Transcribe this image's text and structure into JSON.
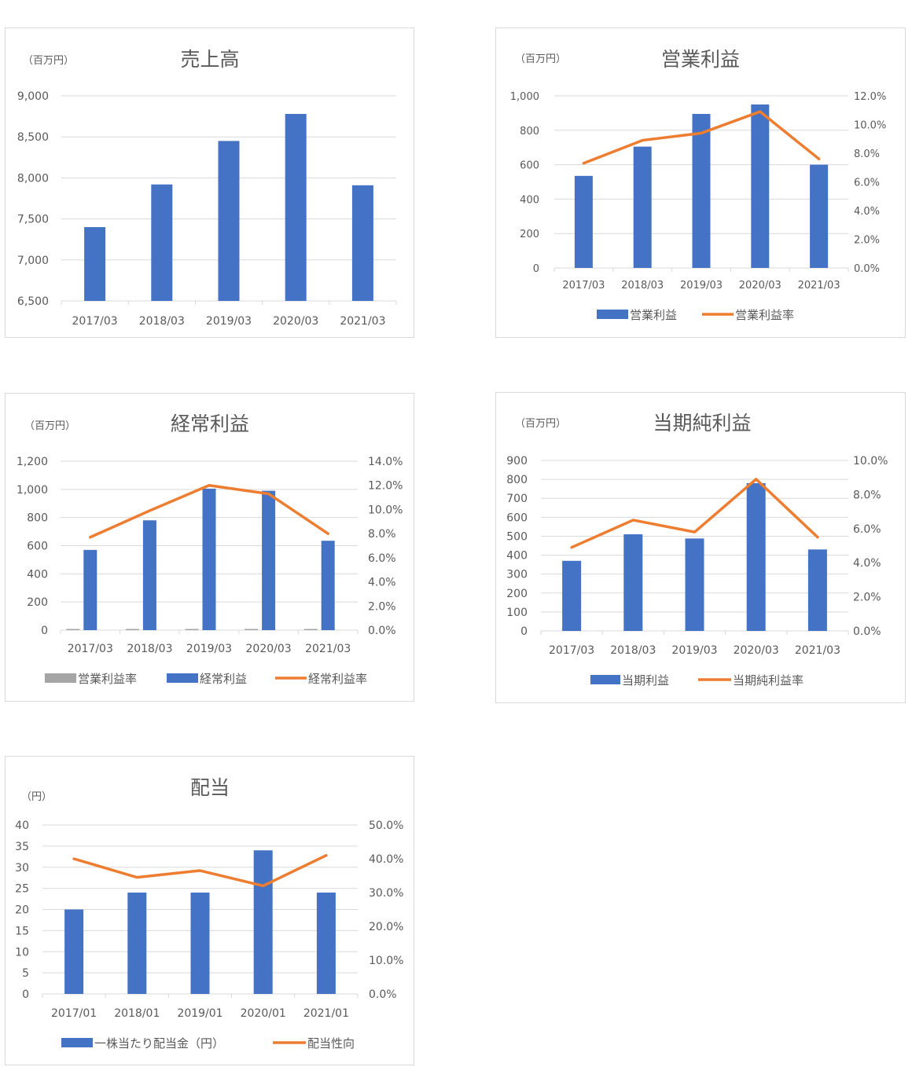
{
  "colors": {
    "bar": "#4472c4",
    "line": "#ed7d31",
    "gray": "#a5a5a5",
    "grid": "#d9d9d9",
    "text": "#595959"
  },
  "chart_data": [
    {
      "type": "bar",
      "title": "売上高",
      "unit": "（百万円）",
      "categories": [
        "2017/03",
        "2018/03",
        "2019/03",
        "2020/03",
        "2021/03"
      ],
      "series": [
        {
          "values": [
            7400,
            7920,
            8450,
            8780,
            7910
          ]
        }
      ],
      "ylim": [
        6500,
        9000
      ],
      "yticks": [
        "6,500",
        "7,000",
        "7,500",
        "8,000",
        "8,500",
        "9,000"
      ],
      "grid": true,
      "legend": "none"
    },
    {
      "type": "bar",
      "title": "営業利益",
      "unit": "（百万円）",
      "categories": [
        "2017/03",
        "2018/03",
        "2019/03",
        "2020/03",
        "2021/03"
      ],
      "series": [
        {
          "name": "営業利益",
          "type": "bar",
          "axis": "left",
          "values": [
            535,
            705,
            895,
            950,
            600
          ]
        },
        {
          "name": "営業利益率",
          "type": "line",
          "axis": "right",
          "values": [
            0.073,
            0.089,
            0.094,
            0.109,
            0.076
          ]
        }
      ],
      "ylim": [
        0,
        1000
      ],
      "yticks": [
        "0",
        "200",
        "400",
        "600",
        "800",
        "1,000"
      ],
      "y2lim": [
        0,
        0.12
      ],
      "y2ticks": [
        "0.0%",
        "2.0%",
        "4.0%",
        "6.0%",
        "8.0%",
        "10.0%",
        "12.0%"
      ],
      "grid": true,
      "legend": "bottom"
    },
    {
      "type": "bar",
      "title": "経常利益",
      "unit": "（百万円）",
      "categories": [
        "2017/03",
        "2018/03",
        "2019/03",
        "2020/03",
        "2021/03"
      ],
      "series": [
        {
          "name": "営業利益率",
          "type": "bar",
          "axis": "left",
          "values": [
            0.073,
            0.089,
            0.094,
            0.109,
            0.076
          ]
        },
        {
          "name": "経常利益",
          "type": "bar",
          "axis": "left",
          "values": [
            570,
            780,
            1005,
            990,
            635
          ]
        },
        {
          "name": "経常利益率",
          "type": "line",
          "axis": "right",
          "values": [
            0.077,
            0.099,
            0.12,
            0.113,
            0.08
          ]
        }
      ],
      "ylim": [
        0,
        1200
      ],
      "yticks": [
        "0",
        "200",
        "400",
        "600",
        "800",
        "1,000",
        "1,200"
      ],
      "y2lim": [
        0,
        0.14
      ],
      "y2ticks": [
        "0.0%",
        "2.0%",
        "4.0%",
        "6.0%",
        "8.0%",
        "10.0%",
        "12.0%",
        "14.0%"
      ],
      "grid": true,
      "legend": "bottom"
    },
    {
      "type": "bar",
      "title": "当期純利益",
      "unit": "（百万円）",
      "categories": [
        "2017/03",
        "2018/03",
        "2019/03",
        "2020/03",
        "2021/03"
      ],
      "series": [
        {
          "name": "当期利益",
          "type": "bar",
          "axis": "left",
          "values": [
            370,
            510,
            488,
            780,
            430
          ]
        },
        {
          "name": "当期純利益率",
          "type": "line",
          "axis": "right",
          "values": [
            0.049,
            0.065,
            0.058,
            0.089,
            0.055
          ]
        }
      ],
      "ylim": [
        0,
        900
      ],
      "yticks": [
        "0",
        "100",
        "200",
        "300",
        "400",
        "500",
        "600",
        "700",
        "800",
        "900"
      ],
      "y2lim": [
        0,
        0.1
      ],
      "y2ticks": [
        "0.0%",
        "2.0%",
        "4.0%",
        "6.0%",
        "8.0%",
        "10.0%"
      ],
      "grid": true,
      "legend": "bottom"
    },
    {
      "type": "bar",
      "title": "配当",
      "unit": "（円）",
      "categories": [
        "2017/01",
        "2018/01",
        "2019/01",
        "2020/01",
        "2021/01"
      ],
      "series": [
        {
          "name": "一株当たり配当金（円）",
          "type": "bar",
          "axis": "left",
          "values": [
            20,
            24,
            24,
            34,
            24
          ]
        },
        {
          "name": "配当性向",
          "type": "line",
          "axis": "right",
          "values": [
            0.4,
            0.345,
            0.365,
            0.32,
            0.41
          ]
        }
      ],
      "ylim": [
        0,
        40
      ],
      "yticks": [
        "0",
        "5",
        "10",
        "15",
        "20",
        "25",
        "30",
        "35",
        "40"
      ],
      "y2lim": [
        0,
        0.5
      ],
      "y2ticks": [
        "0.0%",
        "10.0%",
        "20.0%",
        "30.0%",
        "40.0%",
        "50.0%"
      ],
      "grid": true,
      "legend": "bottom"
    }
  ]
}
